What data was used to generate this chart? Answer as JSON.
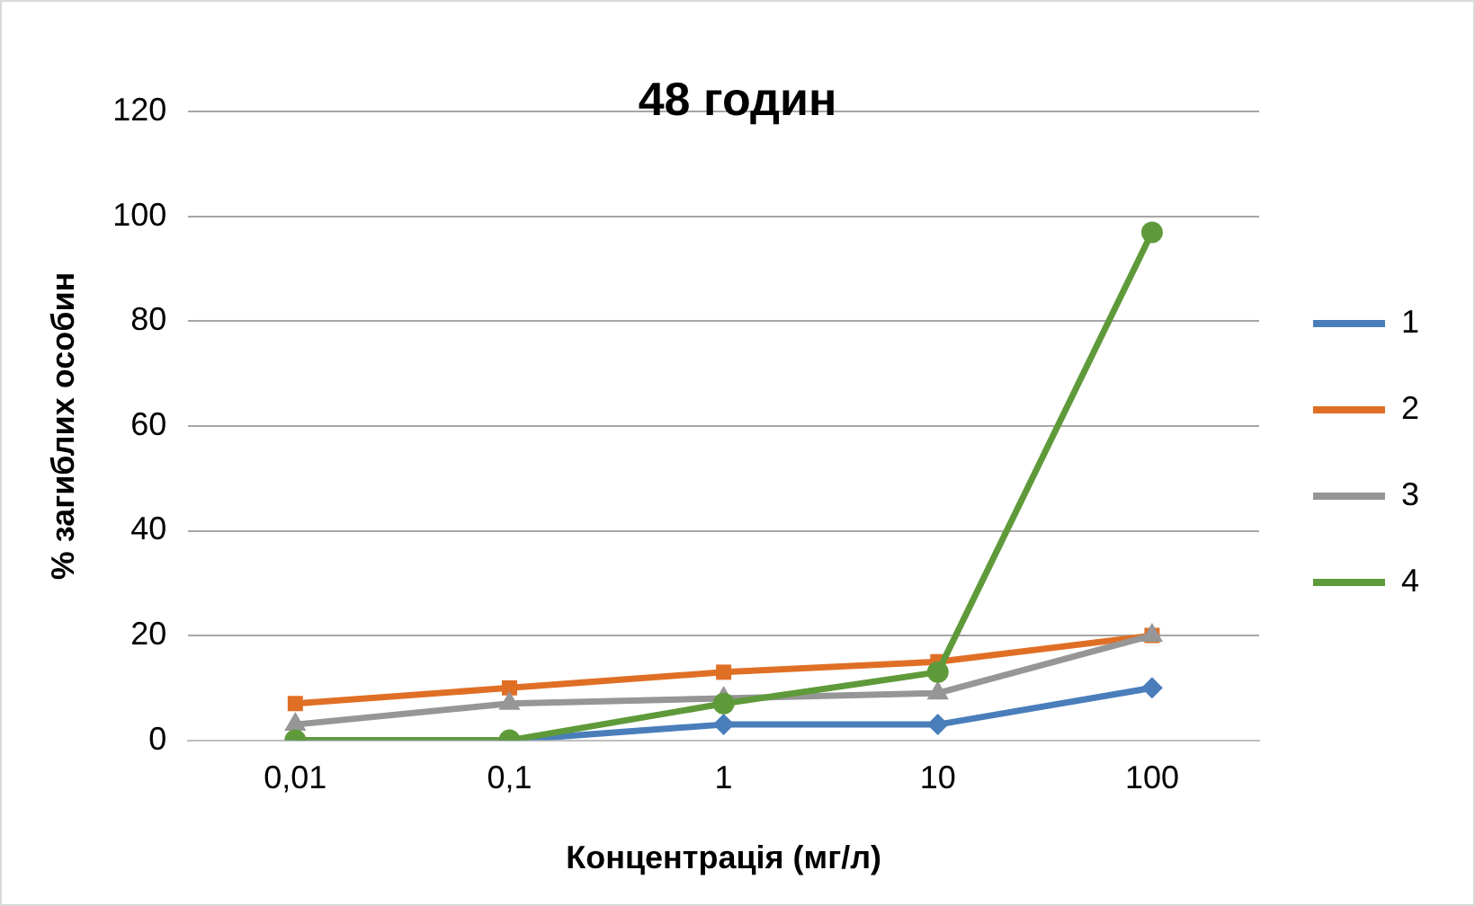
{
  "chart_data": {
    "type": "line",
    "title": "48 годин",
    "xlabel": "Концентрація (мг/л)",
    "ylabel": "% загиблих особин",
    "categories": [
      "0,01",
      "0,1",
      "1",
      "10",
      "100"
    ],
    "series": [
      {
        "name": "1",
        "color": "#4a7ebb",
        "marker": "diamond",
        "values": [
          0,
          0,
          3,
          3,
          10
        ]
      },
      {
        "name": "2",
        "color": "#e06f26",
        "marker": "square",
        "values": [
          7,
          10,
          13,
          15,
          20
        ]
      },
      {
        "name": "3",
        "color": "#969696",
        "marker": "triangle",
        "values": [
          3,
          7,
          8,
          9,
          20
        ]
      },
      {
        "name": "4",
        "color": "#5f9a3a",
        "marker": "circle",
        "values": [
          0,
          0,
          7,
          13,
          97
        ]
      }
    ],
    "ylim": [
      0,
      120
    ],
    "yticks": [
      0,
      20,
      40,
      60,
      80,
      100,
      120
    ],
    "grid": "y",
    "legend": "right"
  }
}
